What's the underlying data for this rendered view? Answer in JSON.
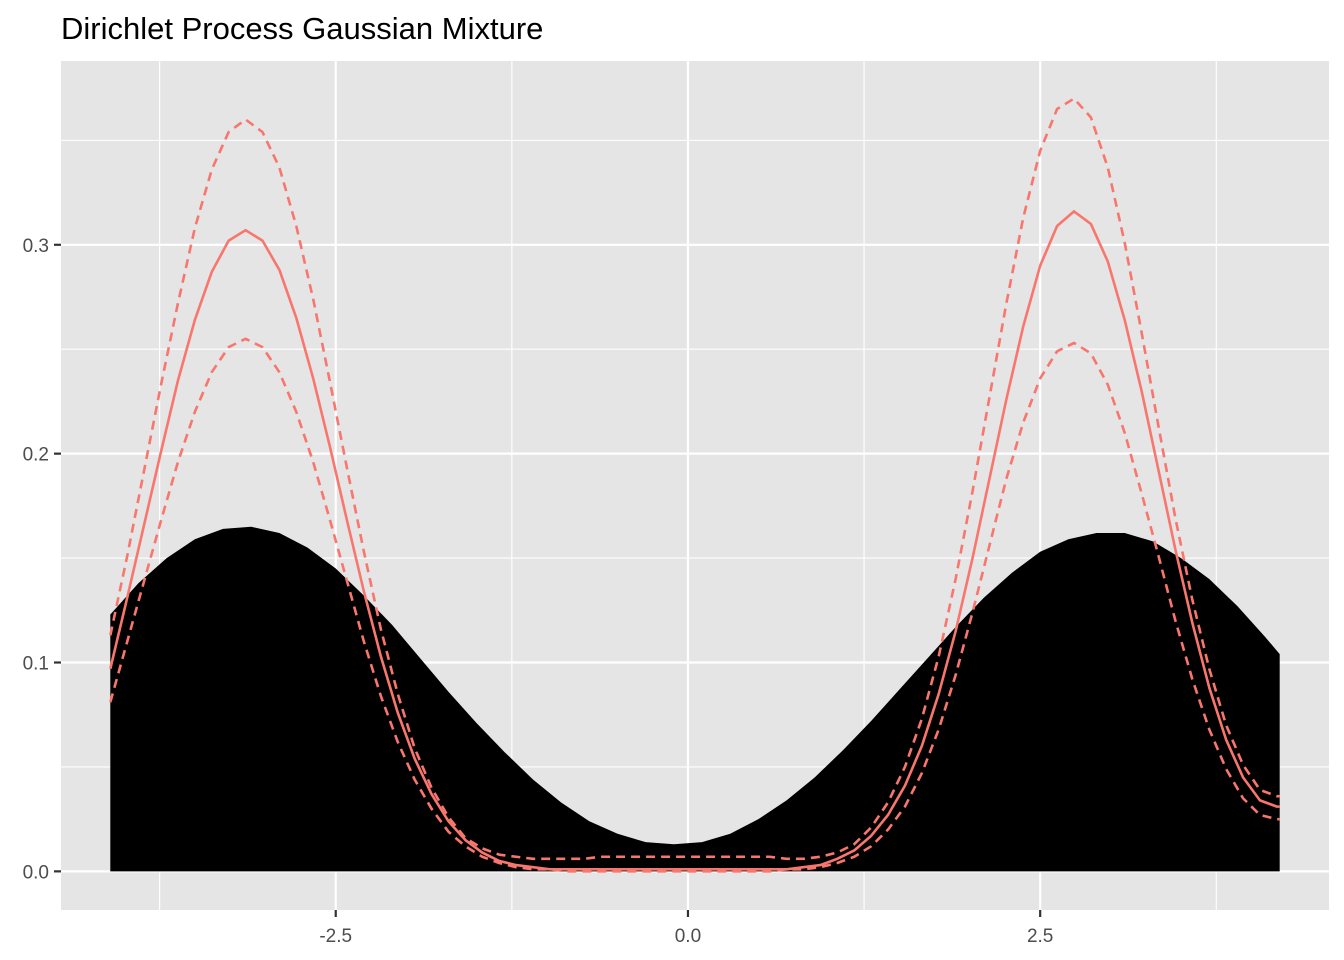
{
  "chart_data": {
    "type": "area",
    "title": "Dirichlet Process Gaussian Mixture",
    "xlabel": "",
    "ylabel": "",
    "xlim": [
      -4.45,
      4.55
    ],
    "ylim": [
      -0.0185,
      0.388
    ],
    "x_ticks": [
      -2.5,
      0.0,
      2.5
    ],
    "x_tick_labels": [
      "-2.5",
      "0.0",
      "2.5"
    ],
    "x_minor_ticks": [
      -3.75,
      -1.25,
      1.25,
      3.75
    ],
    "y_ticks": [
      0.0,
      0.1,
      0.2,
      0.3
    ],
    "y_tick_labels": [
      "0.0",
      "0.1",
      "0.2",
      "0.3"
    ],
    "y_minor_ticks": [
      0.05,
      0.15,
      0.25,
      0.35
    ],
    "grid": true,
    "legend": "none",
    "colors": {
      "panel_background": "#e5e5e5",
      "grid": "#ffffff",
      "area_fill": "#000000",
      "series_line": "#f8766d"
    },
    "series": [
      {
        "kind": "area",
        "x": [
          -4.1,
          -3.9,
          -3.7,
          -3.5,
          -3.3,
          -3.1,
          -2.9,
          -2.7,
          -2.5,
          -2.3,
          -2.1,
          -1.9,
          -1.7,
          -1.5,
          -1.3,
          -1.1,
          -0.9,
          -0.7,
          -0.5,
          -0.3,
          -0.1,
          0.1,
          0.3,
          0.5,
          0.7,
          0.9,
          1.1,
          1.3,
          1.5,
          1.7,
          1.9,
          2.1,
          2.3,
          2.5,
          2.7,
          2.9,
          3.1,
          3.3,
          3.5,
          3.7,
          3.9,
          4.1,
          4.2
        ],
        "y": [
          0.123,
          0.138,
          0.15,
          0.159,
          0.164,
          0.165,
          0.162,
          0.155,
          0.145,
          0.132,
          0.118,
          0.102,
          0.086,
          0.071,
          0.057,
          0.044,
          0.033,
          0.024,
          0.018,
          0.014,
          0.013,
          0.014,
          0.018,
          0.025,
          0.034,
          0.045,
          0.058,
          0.072,
          0.087,
          0.102,
          0.117,
          0.131,
          0.143,
          0.153,
          0.159,
          0.162,
          0.162,
          0.158,
          0.15,
          0.14,
          0.127,
          0.112,
          0.104
        ]
      },
      {
        "kind": "line",
        "style": "solid",
        "x": [
          -4.1,
          -3.98,
          -3.86,
          -3.74,
          -3.62,
          -3.5,
          -3.38,
          -3.26,
          -3.14,
          -3.02,
          -2.9,
          -2.78,
          -2.66,
          -2.54,
          -2.42,
          -2.3,
          -2.18,
          -2.06,
          -1.94,
          -1.82,
          -1.7,
          -1.58,
          -1.46,
          -1.34,
          -1.22,
          -1.1,
          -0.98,
          -0.86,
          -0.74,
          -0.62,
          -0.5,
          -0.38,
          -0.26,
          -0.14,
          -0.02,
          0.1,
          0.22,
          0.34,
          0.46,
          0.58,
          0.7,
          0.82,
          0.94,
          1.06,
          1.18,
          1.3,
          1.42,
          1.54,
          1.66,
          1.78,
          1.9,
          2.02,
          2.14,
          2.26,
          2.38,
          2.5,
          2.62,
          2.74,
          2.86,
          2.98,
          3.1,
          3.22,
          3.34,
          3.46,
          3.58,
          3.7,
          3.82,
          3.94,
          4.06,
          4.18,
          4.2
        ],
        "y": [
          0.097,
          0.131,
          0.166,
          0.201,
          0.235,
          0.264,
          0.287,
          0.302,
          0.307,
          0.302,
          0.288,
          0.265,
          0.236,
          0.203,
          0.168,
          0.134,
          0.103,
          0.076,
          0.054,
          0.037,
          0.024,
          0.015,
          0.009,
          0.005,
          0.003,
          0.002,
          0.001,
          0.001,
          0.001,
          0.001,
          0.001,
          0.001,
          0.001,
          0.001,
          0.001,
          0.001,
          0.001,
          0.001,
          0.001,
          0.001,
          0.001,
          0.002,
          0.003,
          0.006,
          0.01,
          0.017,
          0.027,
          0.041,
          0.06,
          0.085,
          0.115,
          0.15,
          0.188,
          0.226,
          0.261,
          0.29,
          0.309,
          0.316,
          0.31,
          0.292,
          0.264,
          0.23,
          0.192,
          0.154,
          0.119,
          0.088,
          0.063,
          0.045,
          0.034,
          0.031,
          0.031
        ]
      },
      {
        "kind": "line",
        "style": "dashed",
        "x": [
          -4.1,
          -3.98,
          -3.86,
          -3.74,
          -3.62,
          -3.5,
          -3.38,
          -3.26,
          -3.14,
          -3.02,
          -2.9,
          -2.78,
          -2.66,
          -2.54,
          -2.42,
          -2.3,
          -2.18,
          -2.06,
          -1.94,
          -1.82,
          -1.7,
          -1.58,
          -1.46,
          -1.34,
          -1.22,
          -1.1,
          -0.98,
          -0.86,
          -0.74,
          -0.62,
          -0.5,
          -0.38,
          -0.26,
          -0.14,
          -0.02,
          0.1,
          0.22,
          0.34,
          0.46,
          0.58,
          0.7,
          0.82,
          0.94,
          1.06,
          1.18,
          1.3,
          1.42,
          1.54,
          1.66,
          1.78,
          1.9,
          2.02,
          2.14,
          2.26,
          2.38,
          2.5,
          2.62,
          2.74,
          2.86,
          2.98,
          3.1,
          3.22,
          3.34,
          3.46,
          3.58,
          3.7,
          3.82,
          3.94,
          4.06,
          4.18,
          4.2
        ],
        "y": [
          0.113,
          0.151,
          0.192,
          0.233,
          0.272,
          0.308,
          0.336,
          0.354,
          0.36,
          0.354,
          0.337,
          0.309,
          0.274,
          0.234,
          0.193,
          0.153,
          0.116,
          0.085,
          0.059,
          0.04,
          0.026,
          0.016,
          0.011,
          0.008,
          0.007,
          0.006,
          0.006,
          0.006,
          0.006,
          0.007,
          0.007,
          0.007,
          0.007,
          0.007,
          0.007,
          0.007,
          0.007,
          0.007,
          0.007,
          0.007,
          0.006,
          0.006,
          0.007,
          0.009,
          0.013,
          0.021,
          0.033,
          0.05,
          0.073,
          0.103,
          0.14,
          0.182,
          0.227,
          0.272,
          0.313,
          0.345,
          0.365,
          0.37,
          0.361,
          0.337,
          0.301,
          0.258,
          0.213,
          0.169,
          0.13,
          0.097,
          0.07,
          0.051,
          0.039,
          0.036,
          0.036
        ]
      },
      {
        "kind": "line",
        "style": "dashed",
        "x": [
          -4.1,
          -3.98,
          -3.86,
          -3.74,
          -3.62,
          -3.5,
          -3.38,
          -3.26,
          -3.14,
          -3.02,
          -2.9,
          -2.78,
          -2.66,
          -2.54,
          -2.42,
          -2.3,
          -2.18,
          -2.06,
          -1.94,
          -1.82,
          -1.7,
          -1.58,
          -1.46,
          -1.34,
          -1.22,
          -1.1,
          -0.98,
          -0.86,
          -0.74,
          -0.62,
          -0.5,
          -0.38,
          -0.26,
          -0.14,
          -0.02,
          0.1,
          0.22,
          0.34,
          0.46,
          0.58,
          0.7,
          0.82,
          0.94,
          1.06,
          1.18,
          1.3,
          1.42,
          1.54,
          1.66,
          1.78,
          1.9,
          2.02,
          2.14,
          2.26,
          2.38,
          2.5,
          2.62,
          2.74,
          2.86,
          2.98,
          3.1,
          3.22,
          3.34,
          3.46,
          3.58,
          3.7,
          3.82,
          3.94,
          4.06,
          4.18,
          4.2
        ],
        "y": [
          0.081,
          0.11,
          0.139,
          0.168,
          0.196,
          0.22,
          0.239,
          0.251,
          0.255,
          0.251,
          0.239,
          0.22,
          0.196,
          0.168,
          0.139,
          0.11,
          0.084,
          0.062,
          0.044,
          0.03,
          0.019,
          0.012,
          0.007,
          0.004,
          0.002,
          0.001,
          0.001,
          0.0,
          0.0,
          0.0,
          0.0,
          0.0,
          0.0,
          0.0,
          0.0,
          0.0,
          0.0,
          0.0,
          0.0,
          0.0,
          0.001,
          0.001,
          0.002,
          0.004,
          0.007,
          0.012,
          0.02,
          0.031,
          0.047,
          0.068,
          0.094,
          0.124,
          0.156,
          0.188,
          0.215,
          0.236,
          0.249,
          0.253,
          0.248,
          0.233,
          0.21,
          0.181,
          0.151,
          0.12,
          0.092,
          0.068,
          0.049,
          0.035,
          0.027,
          0.025,
          0.025
        ]
      }
    ]
  }
}
